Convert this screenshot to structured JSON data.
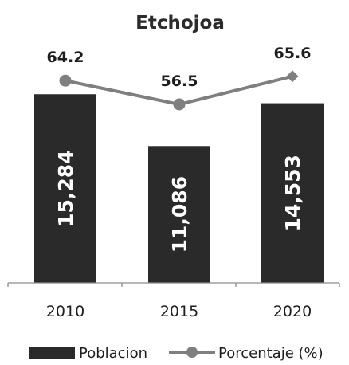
{
  "chart_data": {
    "type": "bar",
    "title": "Etchojoa",
    "categories": [
      "2010",
      "2015",
      "2020"
    ],
    "series": [
      {
        "name": "Poblacion",
        "type": "bar",
        "values": [
          15284,
          11086,
          14553
        ],
        "labels": [
          "15,284",
          "11,086",
          "14,553"
        ],
        "color": "#2a2a2a"
      },
      {
        "name": "Porcentaje (%)",
        "type": "line",
        "values": [
          64.2,
          56.5,
          65.6
        ],
        "labels": [
          "64.2",
          "56.5",
          "65.6"
        ],
        "color": "#7f7f7f",
        "markers": [
          "circle",
          "circle",
          "diamond"
        ]
      }
    ],
    "legend_position": "bottom",
    "grid": false
  },
  "colors": {
    "background": "#ffffff",
    "bar": "#2a2a2a",
    "line": "#7f7f7f",
    "axis": "#8c8c8c",
    "text": "#1e1e1e"
  }
}
